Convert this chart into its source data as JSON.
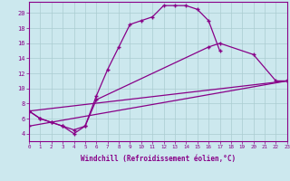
{
  "xlabel": "Windchill (Refroidissement éolien,°C)",
  "bg_color": "#cce8ee",
  "line_color": "#880088",
  "grid_color": "#aaccd0",
  "xlim": [
    0,
    23
  ],
  "ylim": [
    3,
    21.5
  ],
  "ytick_min": 4,
  "ytick_max": 20,
  "ytick_step": 2,
  "line1_x": [
    0,
    1,
    2,
    3,
    4,
    5,
    6,
    7,
    8,
    9,
    10,
    11,
    12,
    13,
    14,
    15,
    16,
    17
  ],
  "line1_y": [
    7,
    6,
    5.5,
    5,
    4.5,
    5,
    9,
    12.5,
    15.5,
    18.5,
    19,
    19.5,
    21,
    21,
    21,
    20.5,
    19,
    15
  ],
  "line2_x": [
    0,
    1,
    2,
    3,
    4,
    5,
    6,
    16,
    17,
    20,
    22,
    23
  ],
  "line2_y": [
    7,
    6,
    5.5,
    5,
    4,
    5,
    8.5,
    15.5,
    16,
    14.5,
    11,
    11
  ],
  "line3_x": [
    0,
    23
  ],
  "line3_y": [
    7,
    11
  ],
  "line4_x": [
    0,
    23
  ],
  "line4_y": [
    5,
    11
  ]
}
